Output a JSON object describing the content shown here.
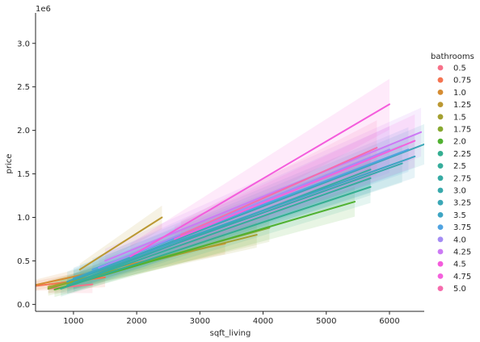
{
  "chart_data": {
    "type": "scatter",
    "title": "",
    "xlabel": "sqft_living",
    "ylabel": "price",
    "y_offset_label": "1e6",
    "xlim": [
      400,
      6550
    ],
    "ylim": [
      -0.08,
      3.35
    ],
    "x_ticks": [
      1000,
      2000,
      3000,
      4000,
      5000,
      6000
    ],
    "y_ticks": [
      0.0,
      0.5,
      1.0,
      1.5,
      2.0,
      2.5,
      3.0
    ],
    "y_tick_labels": [
      "0.0",
      "0.5",
      "1.0",
      "1.5",
      "2.0",
      "2.5",
      "3.0"
    ],
    "legend_title": "bathrooms",
    "legend_position": "right",
    "series": [
      {
        "name": "0.5",
        "color": "#f77189",
        "line": [
          [
            600,
            0.18
          ],
          [
            1300,
            0.23
          ]
        ]
      },
      {
        "name": "0.75",
        "color": "#f57451",
        "line": [
          [
            380,
            0.21
          ],
          [
            1500,
            0.31
          ]
        ]
      },
      {
        "name": "1.0",
        "color": "#d58c32",
        "line": [
          [
            380,
            0.22
          ],
          [
            3400,
            0.7
          ]
        ]
      },
      {
        "name": "1.25",
        "color": "#bb9832",
        "line": [
          [
            1100,
            0.4
          ],
          [
            2400,
            1.0
          ]
        ]
      },
      {
        "name": "1.5",
        "color": "#a4a031",
        "line": [
          [
            600,
            0.2
          ],
          [
            3900,
            0.8
          ]
        ]
      },
      {
        "name": "1.75",
        "color": "#88a931",
        "line": [
          [
            600,
            0.18
          ],
          [
            4100,
            0.88
          ]
        ]
      },
      {
        "name": "2.0",
        "color": "#50b131",
        "line": [
          [
            700,
            0.17
          ],
          [
            5450,
            1.18
          ]
        ]
      },
      {
        "name": "2.25",
        "color": "#34ae91",
        "line": [
          [
            800,
            0.18
          ],
          [
            5700,
            1.35
          ]
        ]
      },
      {
        "name": "2.5",
        "color": "#36ad9c",
        "line": [
          [
            900,
            0.22
          ],
          [
            5700,
            1.45
          ]
        ]
      },
      {
        "name": "2.75",
        "color": "#37aba4",
        "line": [
          [
            1000,
            0.25
          ],
          [
            5700,
            1.55
          ]
        ]
      },
      {
        "name": "3.0",
        "color": "#39a9ac",
        "line": [
          [
            1000,
            0.28
          ],
          [
            6200,
            1.62
          ]
        ]
      },
      {
        "name": "3.25",
        "color": "#3ba7b6",
        "line": [
          [
            900,
            0.26
          ],
          [
            6550,
            1.84
          ]
        ]
      },
      {
        "name": "3.5",
        "color": "#3ea5c3",
        "line": [
          [
            1000,
            0.3
          ],
          [
            6400,
            1.7
          ]
        ]
      },
      {
        "name": "3.75",
        "color": "#50a3e1",
        "line": [
          [
            1300,
            0.4
          ],
          [
            6300,
            1.78
          ]
        ]
      },
      {
        "name": "4.0",
        "color": "#a48cf4",
        "line": [
          [
            1400,
            0.42
          ],
          [
            6000,
            1.78
          ]
        ]
      },
      {
        "name": "4.25",
        "color": "#cc7af4",
        "line": [
          [
            1500,
            0.5
          ],
          [
            6500,
            1.98
          ]
        ]
      },
      {
        "name": "4.5",
        "color": "#f45cdc",
        "line": [
          [
            1900,
            0.55
          ],
          [
            6000,
            2.3
          ]
        ]
      },
      {
        "name": "4.75",
        "color": "#f461dd",
        "line": [
          [
            2600,
            0.75
          ],
          [
            6400,
            1.88
          ]
        ]
      },
      {
        "name": "5.0",
        "color": "#f66bad",
        "line": [
          [
            2700,
            0.8
          ],
          [
            5800,
            1.8
          ]
        ]
      }
    ]
  }
}
